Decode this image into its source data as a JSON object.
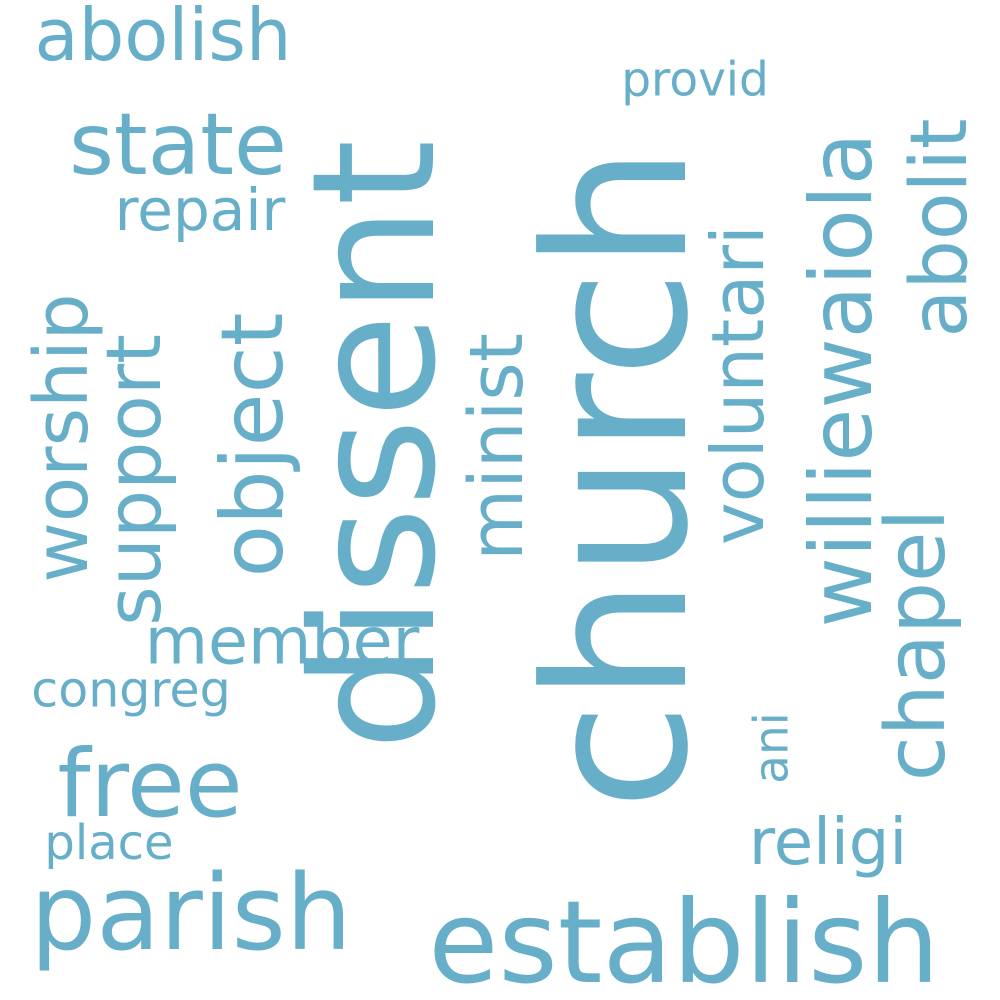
{
  "word_color": "#67aec9",
  "background_color": "#ffffff",
  "words": {
    "church": "church",
    "dissent": "dissent",
    "establish": "establish",
    "parish": "parish",
    "free": "free",
    "worship": "worship",
    "support": "support",
    "object": "object",
    "state": "state",
    "abolish": "abolish",
    "repair": "repair",
    "member": "member",
    "congreg": "congreg",
    "place": "place",
    "minist": "minist",
    "voluntari": "voluntari",
    "williewaiola": "williewaiola",
    "chapel": "chapel",
    "abolit": "abolit",
    "provid": "provid",
    "ani": "ani",
    "religi": "religi"
  }
}
